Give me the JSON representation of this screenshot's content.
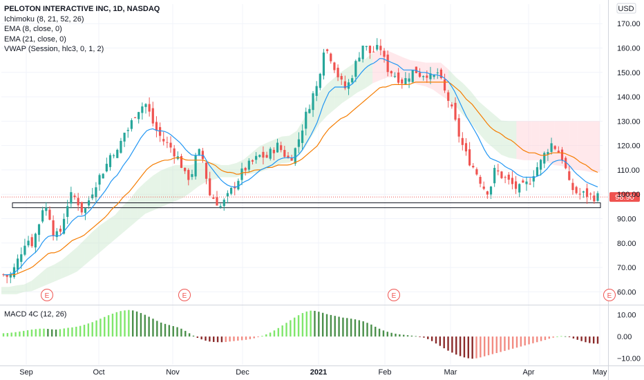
{
  "legend": {
    "title": "PELOTON INTERACTIVE INC, 1D, NASDAQ",
    "lines": [
      "Ichimoku (8, 21, 52, 26)",
      "EMA (8, close, 0)",
      "EMA (21, close, 0)",
      "VWAP (Session, hlc3, 0, 1, 2)"
    ]
  },
  "currency": "USD",
  "last_price_label": "98.90",
  "macd_label": "MACD 4C (12, 26)",
  "earnings_marker": "E",
  "colors": {
    "up": "#26a69a",
    "down": "#ef5350",
    "ema_fast": "#2196f3",
    "ema_slow": "#f57c00",
    "cloud_bull": "#c8e6c9",
    "cloud_bear": "#ffcdd2",
    "macd_up_strong": "#7fe66b",
    "macd_up_weak": "#4a8f4a",
    "macd_down_weak": "#f28b82",
    "macd_down_strong": "#8b2a2a",
    "price_line": "#ef5350"
  },
  "chart_data": [
    {
      "type": "candlestick",
      "title": "PELOTON INTERACTIVE INC, 1D, NASDAQ",
      "x_ticks": [
        "Sep",
        "Oct",
        "Nov",
        "Dec",
        "2021",
        "Feb",
        "Mar",
        "Apr",
        "May"
      ],
      "y_ticks": [
        60,
        70,
        80,
        90,
        100,
        110,
        120,
        130,
        140,
        150,
        160,
        170
      ],
      "ylim": [
        55,
        178
      ],
      "support_zone": [
        94.5,
        96.5
      ],
      "last_price": 98.9,
      "earnings_positions": [
        "Sep",
        "Nov",
        "Feb",
        "May"
      ],
      "close_path": [
        67,
        66,
        70,
        76,
        82,
        80,
        86,
        96,
        92,
        82,
        85,
        95,
        100,
        97,
        92,
        98,
        104,
        108,
        112,
        118,
        117,
        125,
        127,
        133,
        136,
        137,
        130,
        125,
        122,
        120,
        117,
        113,
        106,
        109,
        118,
        114,
        100,
        98,
        95,
        98,
        102,
        106,
        110,
        112,
        114,
        116,
        115,
        118,
        120,
        117,
        114,
        118,
        125,
        133,
        140,
        145,
        160,
        158,
        152,
        146,
        143,
        149,
        156,
        162,
        158,
        159,
        160,
        152,
        150,
        148,
        146,
        149,
        151,
        149,
        150,
        147,
        150,
        143,
        138,
        130,
        122,
        116,
        112,
        108,
        103,
        101,
        110,
        108,
        106,
        104,
        102,
        103,
        105,
        110,
        113,
        118,
        121,
        118,
        114,
        104,
        101,
        100,
        100,
        99,
        99
      ],
      "ema_fast": [
        67,
        67,
        68,
        70,
        73,
        75,
        77,
        81,
        83,
        83,
        83,
        86,
        89,
        91,
        91,
        93,
        96,
        99,
        102,
        106,
        108,
        112,
        115,
        119,
        123,
        126,
        127,
        126,
        126,
        125,
        123,
        121,
        118,
        116,
        116,
        116,
        112,
        109,
        106,
        104,
        103,
        103,
        105,
        106,
        108,
        110,
        111,
        112,
        114,
        115,
        115,
        115,
        117,
        121,
        125,
        130,
        137,
        142,
        144,
        144,
        144,
        145,
        148,
        151,
        153,
        154,
        156,
        155,
        154,
        153,
        151,
        151,
        151,
        150,
        150,
        149,
        149,
        148,
        146,
        142,
        137,
        132,
        128,
        124,
        119,
        115,
        114,
        113,
        111,
        110,
        108,
        107,
        107,
        107,
        108,
        110,
        113,
        114,
        114,
        112,
        109,
        107,
        105,
        104,
        103
      ],
      "ema_slow": [
        67,
        67,
        67,
        68,
        69,
        70,
        72,
        74,
        76,
        76,
        77,
        79,
        81,
        82,
        83,
        85,
        87,
        89,
        91,
        94,
        96,
        99,
        101,
        104,
        107,
        110,
        112,
        113,
        114,
        114,
        115,
        115,
        114,
        114,
        114,
        114,
        113,
        112,
        110,
        109,
        109,
        108,
        109,
        109,
        110,
        110,
        111,
        111,
        112,
        112,
        112,
        113,
        114,
        116,
        118,
        120,
        124,
        127,
        129,
        131,
        132,
        134,
        136,
        138,
        140,
        142,
        144,
        144,
        145,
        145,
        145,
        145,
        146,
        146,
        146,
        146,
        146,
        146,
        146,
        144,
        142,
        139,
        137,
        134,
        131,
        128,
        126,
        125,
        123,
        122,
        120,
        118,
        117,
        117,
        116,
        116,
        117,
        117,
        117,
        116,
        115,
        113,
        112,
        110,
        109
      ],
      "cloud_top": [
        62,
        62,
        62,
        63,
        63,
        64,
        66,
        68,
        70,
        71,
        72,
        74,
        76,
        78,
        80,
        83,
        85,
        87,
        89,
        90,
        92,
        95,
        97,
        100,
        103,
        105,
        107,
        109,
        110,
        111,
        112,
        112,
        112,
        112,
        113,
        113,
        113,
        113,
        112,
        112,
        112,
        113,
        114,
        116,
        118,
        120,
        121,
        122,
        123,
        124,
        124,
        125,
        128,
        133,
        138,
        141,
        144,
        146,
        148,
        150,
        152,
        153,
        155,
        155,
        157,
        159,
        159,
        159,
        158,
        157,
        156,
        155,
        155,
        154,
        154,
        154,
        154,
        154,
        150,
        148,
        146,
        144,
        141,
        138,
        136,
        134,
        132,
        130,
        130,
        130,
        130,
        130,
        130,
        130,
        130,
        130,
        130,
        130,
        130,
        130,
        130,
        130,
        130,
        130,
        130
      ],
      "cloud_bottom": [
        59,
        59,
        59,
        59,
        60,
        60,
        61,
        62,
        63,
        64,
        65,
        66,
        67,
        68,
        70,
        72,
        74,
        76,
        78,
        80,
        82,
        84,
        86,
        88,
        90,
        92,
        93,
        94,
        95,
        96,
        97,
        98,
        99,
        101,
        103,
        104,
        106,
        106,
        107,
        107,
        107,
        107,
        108,
        108,
        109,
        109,
        110,
        111,
        112,
        113,
        113,
        114,
        116,
        120,
        124,
        128,
        131,
        133,
        135,
        137,
        139,
        140,
        142,
        143,
        145,
        146,
        147,
        148,
        148,
        148,
        147,
        146,
        145,
        145,
        144,
        143,
        141,
        140,
        138,
        136,
        133,
        131,
        128,
        125,
        122,
        120,
        118,
        116,
        115,
        115,
        114,
        114,
        114,
        114,
        114,
        113,
        112,
        112,
        111,
        110,
        110,
        110,
        109,
        109,
        109
      ]
    },
    {
      "type": "bar",
      "title": "MACD 4C (12, 26)",
      "y_ticks": [
        10.0,
        0.0,
        -10.0
      ],
      "y_tick_labels": [
        "10.00",
        "0.00",
        "−10.00"
      ],
      "ylim": [
        -13,
        14
      ],
      "values": [
        1.5,
        1.6,
        1.8,
        2.0,
        2.3,
        2.6,
        2.9,
        3.2,
        3.4,
        3.6,
        3.6,
        3.5,
        3.3,
        3.2,
        3.4,
        3.7,
        4.0,
        4.2,
        4.5,
        4.9,
        5.4,
        6.0,
        6.6,
        7.4,
        8.2,
        9.0,
        9.8,
        10.5,
        11.2,
        11.7,
        12.0,
        12.2,
        12.0,
        11.5,
        10.8,
        10.0,
        9.1,
        8.2,
        7.2,
        6.4,
        5.8,
        5.3,
        4.8,
        4.3,
        3.6,
        2.6,
        1.5,
        0.4,
        -0.6,
        -1.3,
        -1.9,
        -2.3,
        -2.5,
        -2.6,
        -2.6,
        -2.5,
        -2.3,
        -2.1,
        -1.9,
        -1.7,
        -1.5,
        -1.2,
        -0.8,
        -0.3,
        0.3,
        1.0,
        1.8,
        2.8,
        3.9,
        5.1,
        6.3,
        7.5,
        8.7,
        9.8,
        10.8,
        11.5,
        11.9,
        11.8,
        11.4,
        10.9,
        10.3,
        9.9,
        9.5,
        9.1,
        8.7,
        8.5,
        8.2,
        7.9,
        7.5,
        7.0,
        6.3,
        5.5,
        4.5,
        3.6,
        2.8,
        2.2,
        1.7,
        1.3,
        1.0,
        0.8,
        0.6,
        0.4,
        0.2,
        -0.1,
        -0.5,
        -1.2,
        -2.1,
        -3.2,
        -4.3,
        -5.4,
        -6.5,
        -7.4,
        -8.3,
        -9.0,
        -9.6,
        -10.0,
        -10.2,
        -10.0,
        -9.6,
        -9.1,
        -8.6,
        -8.1,
        -7.6,
        -7.1,
        -6.6,
        -6.1,
        -5.6,
        -5.1,
        -4.6,
        -4.1,
        -3.6,
        -3.1,
        -2.6,
        -2.1,
        -1.6,
        -1.0,
        -0.5,
        0.0,
        0.2,
        0.1,
        -0.3,
        -0.9,
        -1.5,
        -2.1,
        -2.6,
        -3.0,
        -3.2,
        -3.3
      ]
    }
  ]
}
